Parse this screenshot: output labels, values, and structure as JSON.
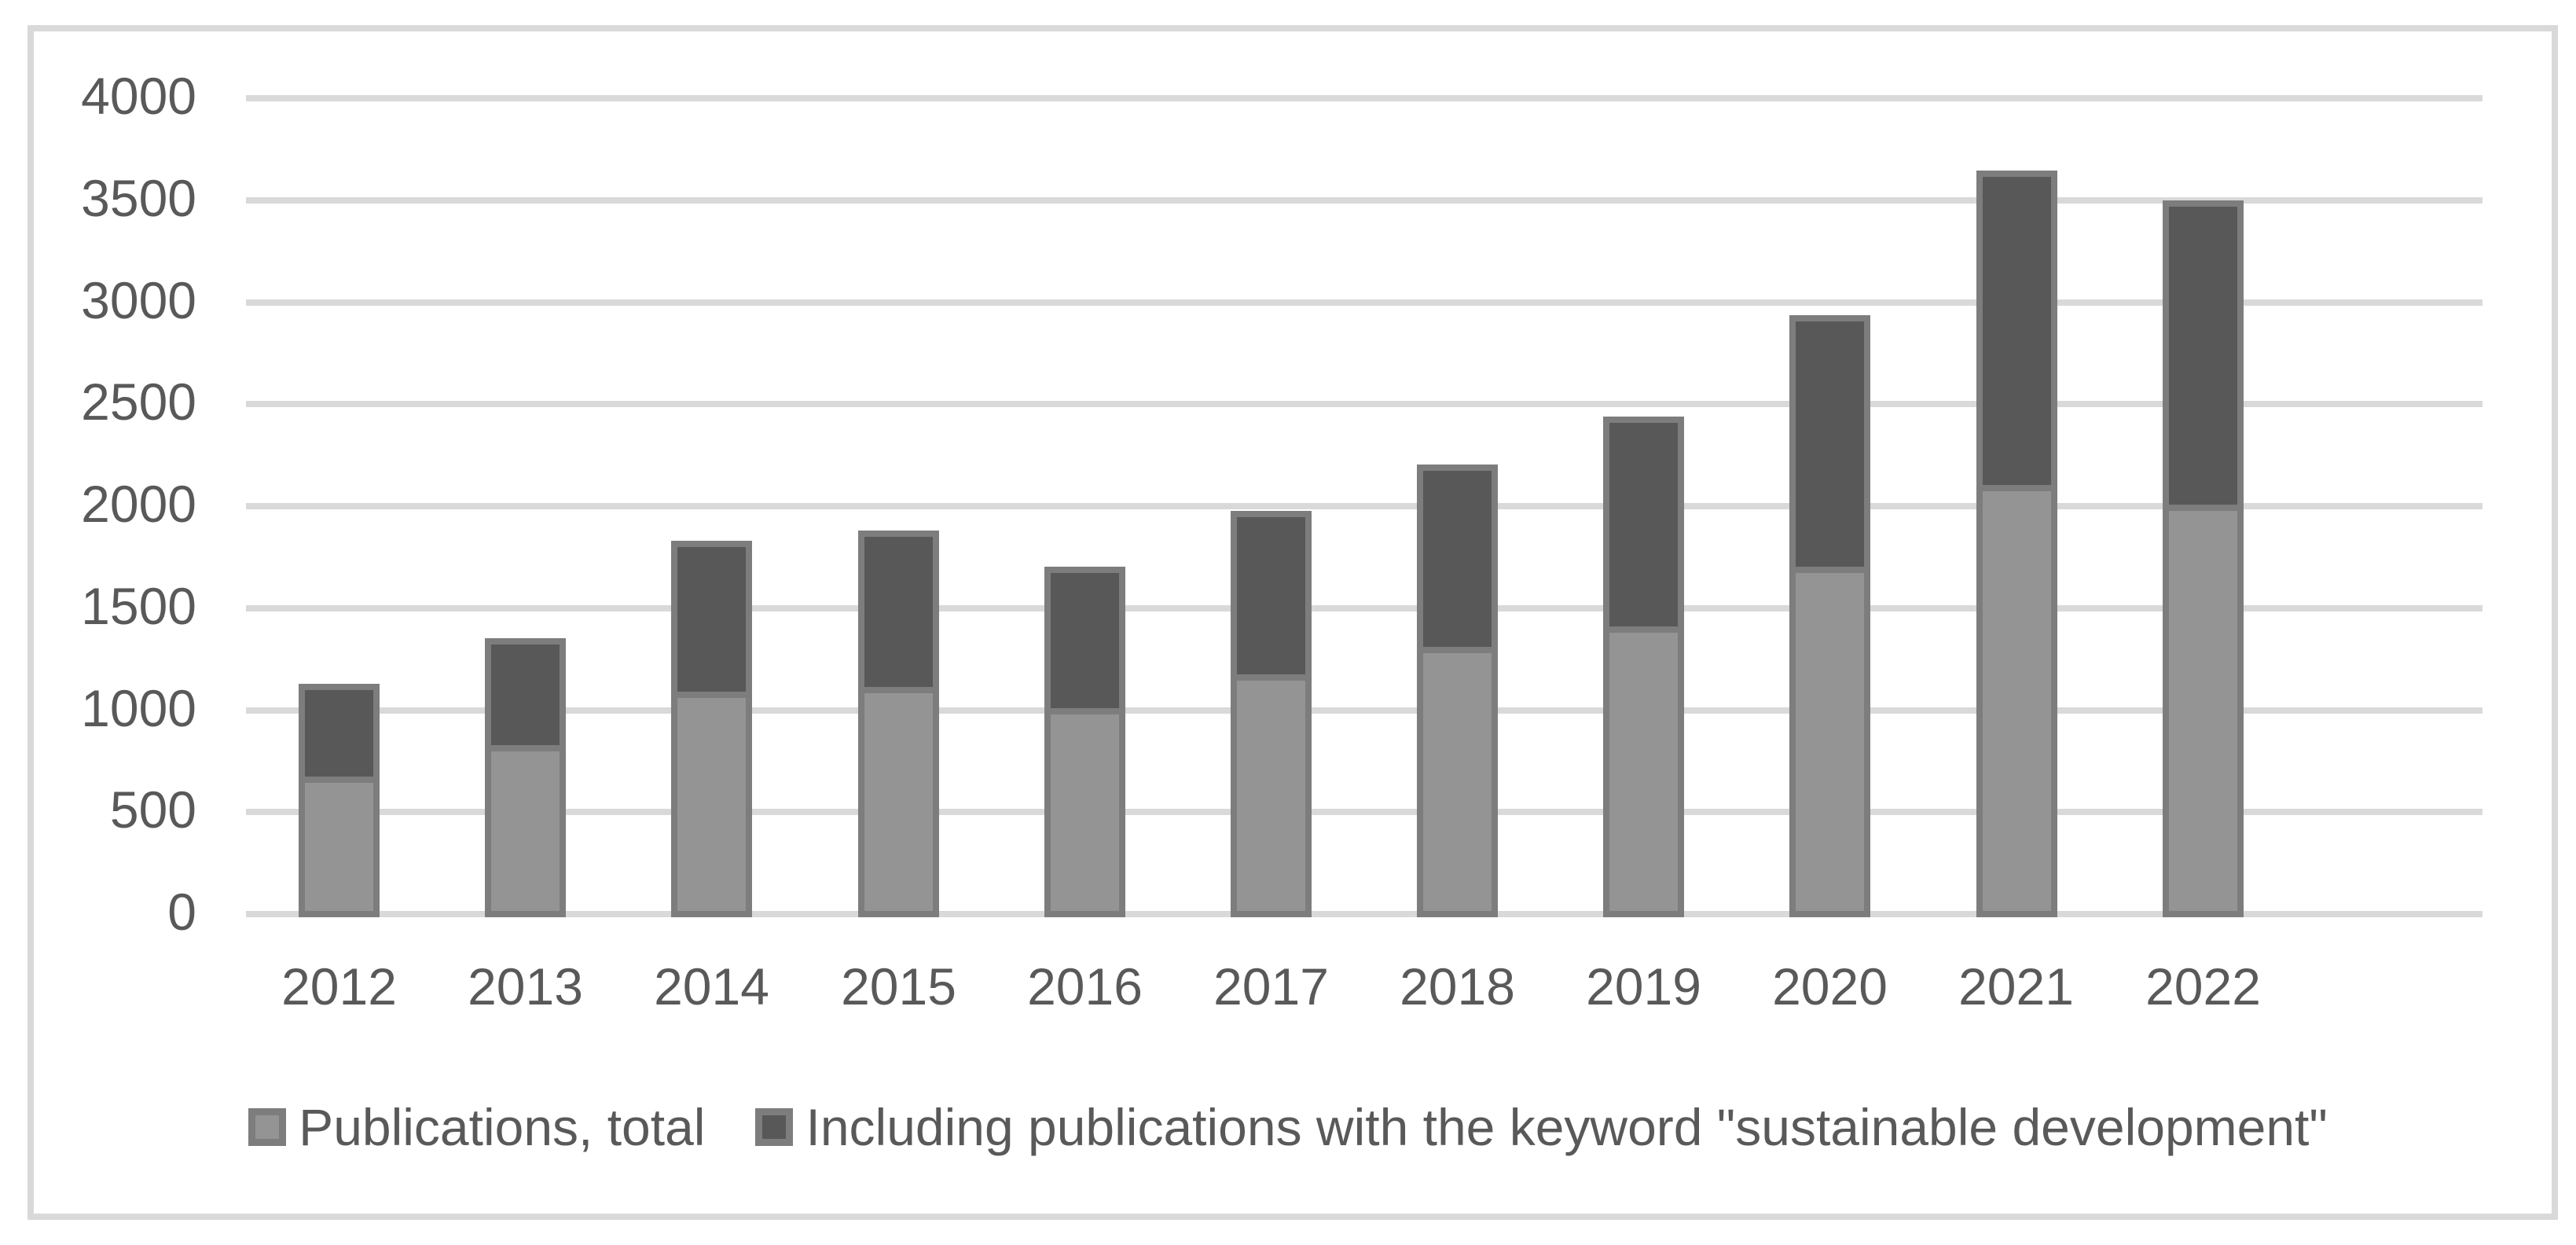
{
  "chart_data": {
    "type": "bar",
    "stacked": true,
    "title": "",
    "categories": [
      "2012",
      "2013",
      "2014",
      "2015",
      "2016",
      "2017",
      "2018",
      "2019",
      "2020",
      "2021",
      "2022"
    ],
    "series": [
      {
        "name": "Publications, total",
        "color": "#949494",
        "values": [
          690,
          845,
          1105,
          1130,
          1025,
          1190,
          1325,
          1425,
          1720,
          2120,
          2025
        ]
      },
      {
        "name": "Including publications with the keyword \"sustainable development\"",
        "color": "#585858",
        "values": [
          455,
          525,
          740,
          765,
          695,
          800,
          895,
          1030,
          1235,
          1540,
          1490
        ]
      }
    ],
    "stack_totals": [
      1145,
      1370,
      1845,
      1895,
      1720,
      1990,
      2220,
      2455,
      2955,
      3660,
      3515
    ],
    "ylim": [
      0,
      4000
    ],
    "yticks": [
      "0",
      "500",
      "1000",
      "1500",
      "2000",
      "2500",
      "3000",
      "3500",
      "4000"
    ],
    "xlabel": "",
    "ylabel": "",
    "grid": "horizontal",
    "legend_position": "bottom",
    "colors": {
      "bar_border": "#7d7d7d",
      "gridline": "#d9d9d9",
      "frame_border": "#d9d9d9",
      "tick_text": "#595959",
      "legend_text": "#595959",
      "background": "#ffffff"
    }
  },
  "legend": {
    "items": [
      {
        "label": "Publications, total",
        "swatch": "light-gray-square"
      },
      {
        "label": "Including publications with the keyword \"sustainable development\"",
        "swatch": "dark-gray-square"
      }
    ]
  }
}
